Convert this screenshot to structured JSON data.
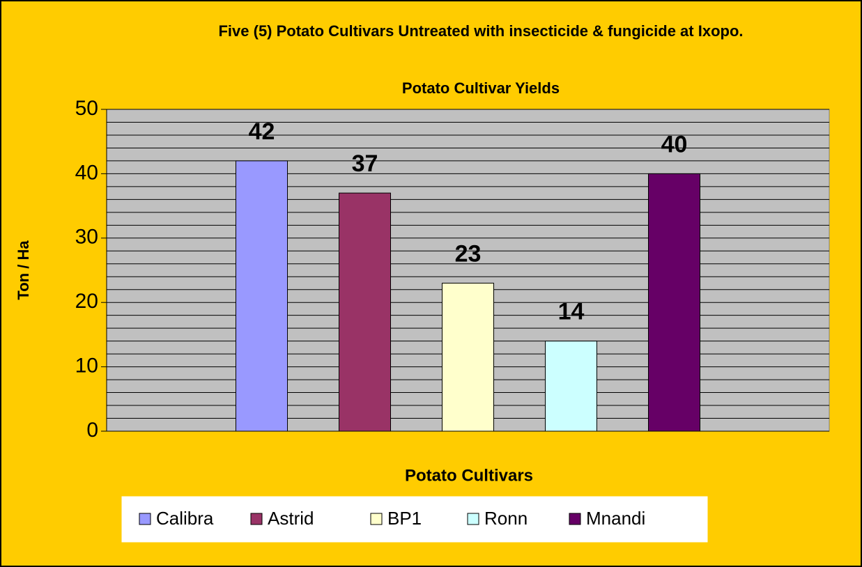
{
  "chart_data": {
    "type": "bar",
    "title": "Five (5) Potato Cultivars Untreated with insecticide & fungicide at Ixopo.",
    "subtitle": "Potato Cultivar Yields",
    "x_label": "Potato Cultivars",
    "y_label": "Ton / Ha",
    "categories": [
      "Calibra",
      "Astrid",
      "BP1",
      "Ronn",
      "Mnandi"
    ],
    "values": [
      42,
      37,
      23,
      14,
      40
    ],
    "colors": [
      "#9999FF",
      "#993366",
      "#FFFFCC",
      "#CCFFFF",
      "#660066"
    ],
    "ylim": [
      0,
      50
    ],
    "yticks": [
      0,
      10,
      20,
      30,
      40,
      50
    ],
    "minor_yticks": [
      2,
      4,
      6,
      8,
      12,
      14,
      16,
      18,
      22,
      24,
      26,
      28,
      32,
      34,
      36,
      38,
      42,
      44,
      46,
      48
    ],
    "grid": true,
    "legend": "bottom"
  }
}
